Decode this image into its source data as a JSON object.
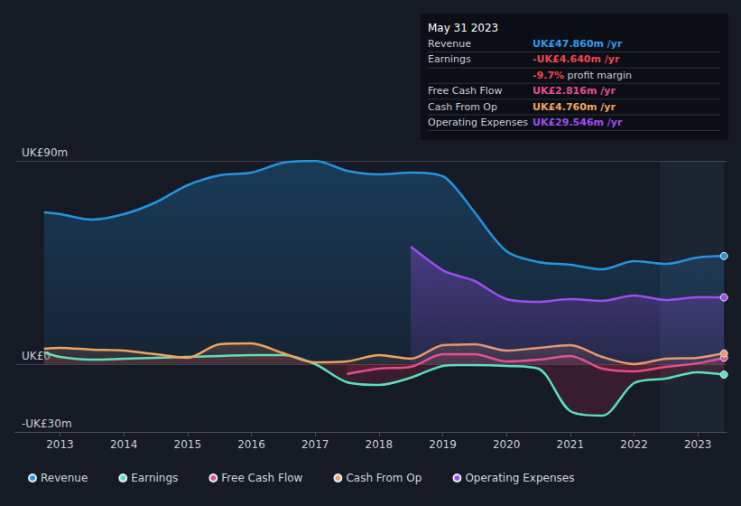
{
  "chart_data": {
    "type": "line",
    "x": [
      2012.75,
      2013,
      2013.5,
      2014,
      2014.5,
      2015,
      2015.5,
      2016,
      2016.5,
      2017,
      2017.5,
      2018,
      2018.5,
      2019,
      2019.25,
      2019.5,
      2020,
      2020.5,
      2021,
      2021.5,
      2022,
      2022.5,
      2023,
      2023.41
    ],
    "series": [
      {
        "name": "Revenue",
        "color": "#2394df",
        "values": [
          67.2,
          66.4,
          64,
          66.4,
          71.6,
          79.2,
          83.6,
          84.8,
          89.2,
          90,
          85.6,
          84,
          84.8,
          83.2,
          76.4,
          67.2,
          50,
          45.2,
          44,
          42,
          45.6,
          44.4,
          47.2,
          47.86
        ]
      },
      {
        "name": "Earnings",
        "color": "#58e0c0",
        "values": [
          5.2,
          3.2,
          2,
          2.4,
          2.8,
          3.2,
          3.6,
          4,
          4,
          0,
          -8,
          -9.2,
          -6,
          -0.8,
          -0.4,
          -0.4,
          -0.8,
          -2,
          -20.8,
          -22.8,
          -8.4,
          -6.4,
          -3.6,
          -4.64
        ]
      },
      {
        "name": "Free Cash Flow",
        "color": "#e64c8a",
        "values": [
          null,
          null,
          null,
          null,
          null,
          null,
          null,
          null,
          null,
          null,
          -4.4,
          -2,
          -1.2,
          4.4,
          4.4,
          4.4,
          1.2,
          2,
          3.6,
          -2,
          -3.2,
          -1.2,
          0.4,
          2.816
        ]
      },
      {
        "name": "Cash From Op",
        "color": "#f0a35e",
        "values": [
          6.8,
          7.2,
          6.4,
          6,
          4.4,
          2.8,
          8.8,
          9.2,
          4.8,
          0.8,
          1.2,
          4,
          2.4,
          8.4,
          8.6,
          8.8,
          6,
          7.2,
          8.4,
          3.2,
          0,
          2.4,
          2.8,
          4.76
        ]
      },
      {
        "name": "Operating Expenses",
        "color": "#a04cf0",
        "values": [
          null,
          null,
          null,
          null,
          null,
          null,
          null,
          null,
          null,
          null,
          null,
          null,
          52,
          41.6,
          39,
          36.8,
          28.8,
          27.6,
          28.8,
          28,
          30.4,
          28.4,
          29.6,
          29.546
        ]
      }
    ],
    "xlim": [
      2012.3,
      2023.45
    ],
    "xticks": [
      2013,
      2014,
      2015,
      2016,
      2017,
      2018,
      2019,
      2020,
      2021,
      2022,
      2023
    ],
    "ylim": [
      -30,
      90
    ],
    "yticks": [
      {
        "value": -30,
        "label": "-UK£30m"
      },
      {
        "value": 0,
        "label": "UK£0"
      },
      {
        "value": 90,
        "label": "UK£90m"
      }
    ],
    "grid": true,
    "legend": "bottom",
    "annotation": {
      "title": "May 31 2023",
      "rows": [
        {
          "label": "Revenue",
          "value": "UK£47.860m /yr",
          "color": "#2d9cf0"
        },
        {
          "label": "Earnings",
          "value": "-UK£4.640m /yr",
          "color": "#f0454f"
        },
        {
          "value": "-9.7%",
          "text": "profit margin",
          "color": "#f0454f"
        },
        {
          "label": "Free Cash Flow",
          "value": "UK£2.816m /yr",
          "color": "#e64c8a"
        },
        {
          "label": "Cash From Op",
          "value": "UK£4.760m /yr",
          "color": "#f0a35e"
        },
        {
          "label": "Operating Expenses",
          "value": "UK£29.546m /yr",
          "color": "#a04cf0"
        }
      ]
    }
  }
}
